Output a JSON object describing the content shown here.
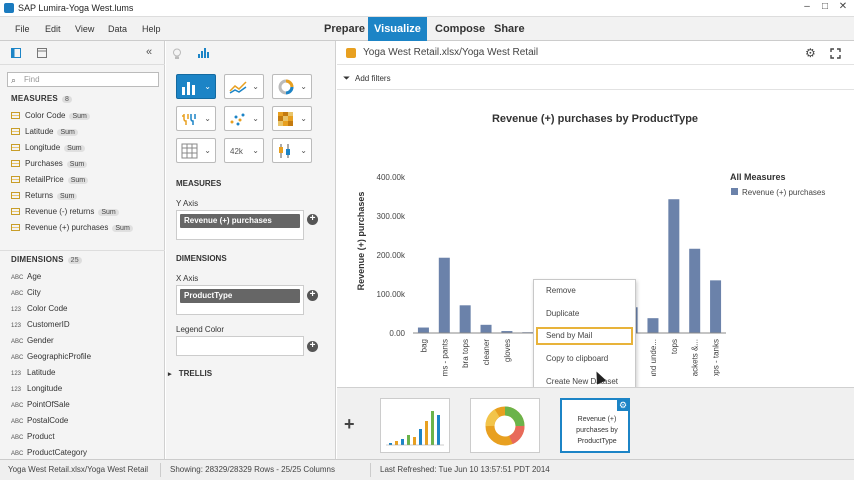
{
  "window": {
    "title": "SAP Lumira-Yoga West.lums"
  },
  "menu": [
    "File",
    "Edit",
    "View",
    "Data",
    "Help"
  ],
  "modes": [
    {
      "label": "Prepare",
      "active": false
    },
    {
      "label": "Visualize",
      "active": true
    },
    {
      "label": "Compose",
      "active": false
    },
    {
      "label": "Share",
      "active": false
    }
  ],
  "left_panel": {
    "collapse_glyph": "«",
    "find_placeholder": "Find",
    "measures_header": "MEASURES",
    "measures_count": "8",
    "measures": [
      {
        "label": "Color Code",
        "agg": "Sum"
      },
      {
        "label": "Latitude",
        "agg": "Sum"
      },
      {
        "label": "Longitude",
        "agg": "Sum"
      },
      {
        "label": "Purchases",
        "agg": "Sum"
      },
      {
        "label": "RetailPrice",
        "agg": "Sum"
      },
      {
        "label": "Returns",
        "agg": "Sum"
      },
      {
        "label": "Revenue (-) returns",
        "agg": "Sum"
      },
      {
        "label": "Revenue (+) purchases",
        "agg": "Sum"
      }
    ],
    "dimensions_header": "DIMENSIONS",
    "dimensions_count": "25",
    "dimensions": [
      {
        "type": "ABC",
        "label": "Age"
      },
      {
        "type": "ABC",
        "label": "City"
      },
      {
        "type": "123",
        "label": "Color Code"
      },
      {
        "type": "123",
        "label": "CustomerID"
      },
      {
        "type": "ABC",
        "label": "Gender"
      },
      {
        "type": "ABC",
        "label": "GeographicProfile"
      },
      {
        "type": "123",
        "label": "Latitude"
      },
      {
        "type": "123",
        "label": "Longitude"
      },
      {
        "type": "ABC",
        "label": "PointOfSale"
      },
      {
        "type": "ABC",
        "label": "PostalCode"
      },
      {
        "type": "ABC",
        "label": "Product"
      },
      {
        "type": "ABC",
        "label": "ProductCategory"
      }
    ]
  },
  "builder": {
    "chart_types": [
      "bar-chart-icon",
      "line-chart-icon",
      "pie-chart-icon",
      "geo-chart-icon",
      "scatter-chart-icon",
      "heatmap-chart-icon",
      "table-chart-icon",
      "numeric-point-icon",
      "box-plot-icon"
    ],
    "measures_header": "MEASURES",
    "y_axis_label": "Y Axis",
    "y_axis_value": "Revenue (+) purchases",
    "dimensions_header": "DIMENSIONS",
    "x_axis_label": "X Axis",
    "x_axis_value": "ProductType",
    "legend_label": "Legend Color",
    "trellis_label": "TRELLIS"
  },
  "main": {
    "dataset": "Yoga West Retail.xlsx/Yoga West Retail",
    "add_filters": "Add filters"
  },
  "chart_data": {
    "type": "bar",
    "title": "Revenue (+) purchases by ProductType",
    "ylabel": "Revenue (+) purchases",
    "xlabel": "",
    "legend_title": "All Measures",
    "legend_position": "right",
    "series": [
      {
        "name": "Revenue (+) purchases",
        "color": "#6b82aa",
        "values": [
          14000,
          193000,
          71000,
          21000,
          5000,
          2000,
          4000,
          38000,
          12000,
          5000,
          66000,
          38000,
          343000,
          216000,
          135000
        ]
      }
    ],
    "categories": [
      "bag",
      "bottoms - pants",
      "bra tops",
      "cleaner",
      "gloves",
      "",
      "",
      "",
      "",
      "",
      "",
      "socks and unde...",
      "tops",
      "tops - jackets &...",
      "tops - tanks"
    ],
    "yticks": [
      "0.00",
      "100.00k",
      "200.00k",
      "300.00k",
      "400.00k"
    ],
    "ylim": [
      0,
      400000
    ],
    "grid": false
  },
  "context_menu": [
    "Remove",
    "Duplicate",
    "Send by Mail",
    "Copy to clipboard",
    "Create New Dataset"
  ],
  "gallery": {
    "add_glyph": "+",
    "selected_thumb_text": "Revenue (+) purchases by ProductType"
  },
  "status": {
    "dataset": "Yoga West Retail.xlsx/Yoga West Retail",
    "rows": "Showing: 28329/28329 Rows - 25/25 Columns",
    "refreshed": "Last Refreshed: Tue Jun 10 13:57:51 PDT 2014"
  }
}
